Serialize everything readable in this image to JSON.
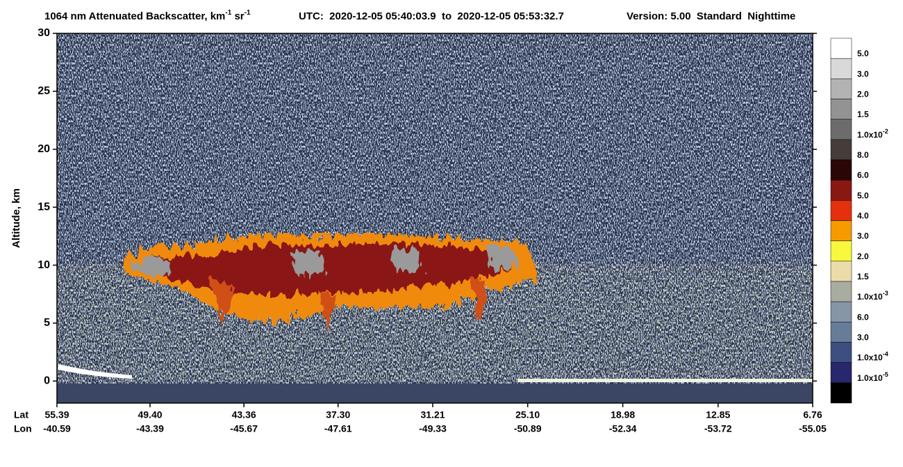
{
  "chart_data": {
    "type": "heatmap",
    "title": {
      "prefix": "1064 nm Attenuated Backscatter, km",
      "sup1": "-1",
      "mid": " sr",
      "sup2": "-1",
      "utc": "UTC:  2020-12-05 05:40:03.9  to  2020-12-05 05:53:32.7",
      "version": "Version: 5.00  Standard  Nighttime"
    },
    "y_label": "Altitude, km",
    "ylim": [
      -1.9,
      30
    ],
    "yticks": [
      0,
      5,
      10,
      15,
      20,
      25,
      30
    ],
    "x_row_labels": [
      "Lat",
      "Lon"
    ],
    "xlim": [
      55.39,
      6.76
    ],
    "xticks": [
      {
        "value": 55.39,
        "label": "55.39"
      },
      {
        "value": 49.4,
        "label": "49.40"
      },
      {
        "value": 43.36,
        "label": "43.36"
      },
      {
        "value": 37.3,
        "label": "37.30"
      },
      {
        "value": 31.21,
        "label": "31.21"
      },
      {
        "value": 25.1,
        "label": "25.10"
      },
      {
        "value": 18.98,
        "label": "18.98"
      },
      {
        "value": 12.85,
        "label": "12.85"
      },
      {
        "value": 6.76,
        "label": "6.76"
      }
    ],
    "lon_labels": [
      "-40.59",
      "-43.39",
      "-45.67",
      "-47.61",
      "-49.33",
      "-50.89",
      "-52.34",
      "-53.72",
      "-55.05"
    ],
    "colorbar": {
      "colors": [
        "#ffffff",
        "#d9d9d9",
        "#b3b3b3",
        "#939393",
        "#6c6c6c",
        "#463c3a",
        "#2a0606",
        "#8a1812",
        "#e4300e",
        "#f59b00",
        "#f8f83c",
        "#ecdcaa",
        "#a9aca0",
        "#8696a6",
        "#677c98",
        "#3d4f80",
        "#27276e",
        "#000000"
      ],
      "labels": [
        {
          "text": "5.0"
        },
        {
          "text": "3.0"
        },
        {
          "text": "2.0"
        },
        {
          "text": "1.5"
        },
        {
          "text": "1.0x10",
          "sup": "-2"
        },
        {
          "text": "8.0"
        },
        {
          "text": "6.0"
        },
        {
          "text": "5.0"
        },
        {
          "text": "4.0"
        },
        {
          "text": "3.0"
        },
        {
          "text": "2.0"
        },
        {
          "text": "1.5"
        },
        {
          "text": "1.0x10",
          "sup": "-3"
        },
        {
          "text": "6.0"
        },
        {
          "text": "3.0"
        },
        {
          "text": "1.0x10",
          "sup": "-4"
        },
        {
          "text": "1.0x10",
          "sup": "-5"
        }
      ]
    }
  }
}
